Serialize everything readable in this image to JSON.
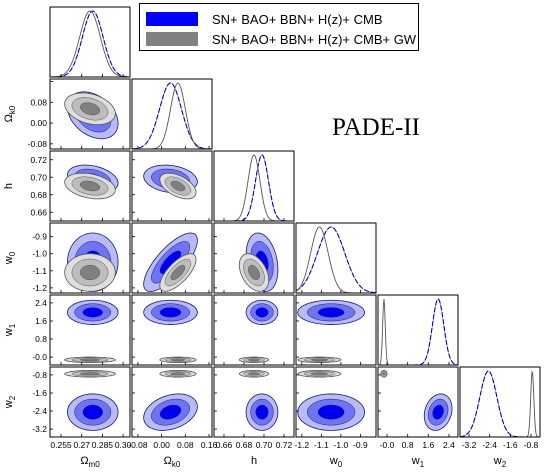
{
  "model_label": "PADE-II",
  "legend": [
    {
      "label": "SN+ BAO+ BBN+ H(z)+ CMB",
      "color": "#0000ff"
    },
    {
      "label": "SN+ BAO+ BBN+ H(z)+ CMB+ GW",
      "color": "#808080"
    }
  ],
  "colors": {
    "series1_dark": "#0000f0",
    "series1_mid": "#6f74f2",
    "series1_light": "#b8bbf8",
    "series2_dark": "#7f7f7f",
    "series2_mid": "#bdbdbd",
    "series2_light": "#dedede",
    "series1_line": "#0000ff",
    "series2_line": "#555555"
  },
  "chart_data": {
    "type": "triangle-corner",
    "parameters": [
      {
        "key": "Om0",
        "label": "Ω",
        "sub": "m0",
        "range": [
          0.247,
          0.305
        ],
        "ticks": [
          0.255,
          0.27,
          0.285,
          0.3
        ],
        "tick_labels": [
          "0.255",
          "0.27",
          "0.285",
          "0.30"
        ]
      },
      {
        "key": "Ok0",
        "label": "Ω",
        "sub": "k0",
        "range": [
          -0.1,
          0.17
        ],
        "ticks": [
          -0.08,
          0.0,
          0.08,
          0.16
        ],
        "tick_labels": [
          "-0.08",
          "0.00",
          "0.08",
          "0.16"
        ]
      },
      {
        "key": "h",
        "label": "h",
        "sub": "",
        "range": [
          0.65,
          0.73
        ],
        "ticks": [
          0.66,
          0.68,
          0.7,
          0.72
        ],
        "tick_labels": [
          "0.66",
          "0.68",
          "0.70",
          "0.72"
        ]
      },
      {
        "key": "w0",
        "label": "w",
        "sub": "0",
        "range": [
          -1.23,
          -0.82
        ],
        "ticks": [
          -1.2,
          -1.1,
          -1.0,
          -0.9
        ],
        "tick_labels": [
          "-1.2",
          "-1.1",
          "-1.0",
          "-0.9"
        ]
      },
      {
        "key": "w1",
        "label": "w",
        "sub": "1",
        "range": [
          -0.35,
          2.75
        ],
        "ticks": [
          -0.0,
          0.8,
          1.6,
          2.4
        ],
        "tick_labels": [
          "-0.0",
          "0.8",
          "1.6",
          "2.4"
        ]
      },
      {
        "key": "w2",
        "label": "w",
        "sub": "2",
        "range": [
          -3.55,
          -0.45
        ],
        "ticks": [
          -3.2,
          -2.4,
          -1.6,
          -0.8
        ],
        "tick_labels": [
          "-3.2",
          "-2.4",
          "-1.6",
          "-0.8"
        ]
      }
    ],
    "series": [
      {
        "name": "SN+ BAO+ BBN+ H(z)+ CMB",
        "mean": {
          "Om0": 0.278,
          "Ok0": 0.03,
          "h": 0.698,
          "w0": -1.05,
          "w1": 1.98,
          "w2": -2.45
        },
        "sigma": {
          "Om0": 0.0075,
          "Ok0": 0.037,
          "h": 0.0065,
          "w0": 0.07,
          "w1": 0.22,
          "w2": 0.33
        },
        "corr": {
          "Om0-Ok0": -0.35,
          "Om0-h": -0.3,
          "Om0-w0": 0.0,
          "Om0-w1": 0.0,
          "Om0-w2": 0.0,
          "Ok0-h": -0.2,
          "Ok0-w0": 0.75,
          "Ok0-w1": 0.0,
          "Ok0-w2": 0.3,
          "h-w0": -0.25,
          "h-w1": 0.0,
          "h-w2": 0.0,
          "w0-w1": 0.0,
          "w0-w2": 0.0,
          "w1-w2": 0.2
        }
      },
      {
        "name": "SN+ BAO+ BBN+ H(z)+ CMB+ GW",
        "mean": {
          "Om0": 0.276,
          "Ok0": 0.055,
          "h": 0.69,
          "w0": -1.11,
          "w1": -0.12,
          "w2": -0.75
        },
        "sigma": {
          "Om0": 0.0075,
          "Ok0": 0.025,
          "h": 0.006,
          "w0": 0.045,
          "w1": 0.05,
          "w2": 0.06
        },
        "corr": {
          "Om0-Ok0": -0.3,
          "Om0-h": -0.3,
          "Om0-w0": 0.0,
          "Om0-w1": 0.0,
          "Om0-w2": 0.0,
          "Ok0-h": -0.5,
          "Ok0-w0": 0.7,
          "Ok0-w1": 0.0,
          "Ok0-w2": 0.0,
          "h-w0": -0.4,
          "h-w1": 0.0,
          "h-w2": 0.0,
          "w0-w1": 0.0,
          "w0-w2": 0.0,
          "w1-w2": 0.0
        }
      }
    ]
  }
}
